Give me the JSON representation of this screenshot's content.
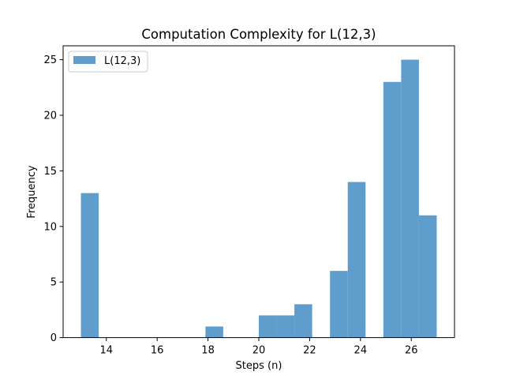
{
  "chart_data": {
    "type": "bar",
    "title": "Computation Complexity for L(12,3)",
    "xlabel": "Steps (n)",
    "ylabel": "Frequency",
    "xlim": [
      12.3,
      27.7
    ],
    "ylim": [
      0,
      26.25
    ],
    "xticks": [
      14,
      16,
      18,
      20,
      22,
      24,
      26
    ],
    "yticks": [
      0,
      5,
      10,
      15,
      20,
      25
    ],
    "grid": false,
    "legend_position": "top-left",
    "bar_color": "#5f9ecc",
    "series": [
      {
        "name": "L(12,3)",
        "bins": [
          {
            "x0": 13.0,
            "x1": 13.7,
            "value": 13
          },
          {
            "x0": 13.7,
            "x1": 14.4,
            "value": 0
          },
          {
            "x0": 14.4,
            "x1": 15.1,
            "value": 0
          },
          {
            "x0": 15.1,
            "x1": 15.8,
            "value": 0
          },
          {
            "x0": 15.8,
            "x1": 16.5,
            "value": 0
          },
          {
            "x0": 16.5,
            "x1": 17.2,
            "value": 0
          },
          {
            "x0": 17.2,
            "x1": 17.9,
            "value": 0
          },
          {
            "x0": 17.9,
            "x1": 18.6,
            "value": 1
          },
          {
            "x0": 18.6,
            "x1": 19.3,
            "value": 0
          },
          {
            "x0": 19.3,
            "x1": 20.0,
            "value": 0
          },
          {
            "x0": 20.0,
            "x1": 20.7,
            "value": 2
          },
          {
            "x0": 20.7,
            "x1": 21.4,
            "value": 2
          },
          {
            "x0": 21.4,
            "x1": 22.1,
            "value": 3
          },
          {
            "x0": 22.1,
            "x1": 22.8,
            "value": 0
          },
          {
            "x0": 22.8,
            "x1": 23.5,
            "value": 6
          },
          {
            "x0": 23.5,
            "x1": 24.2,
            "value": 14
          },
          {
            "x0": 24.2,
            "x1": 24.9,
            "value": 0
          },
          {
            "x0": 24.9,
            "x1": 25.6,
            "value": 23
          },
          {
            "x0": 25.6,
            "x1": 26.3,
            "value": 25
          },
          {
            "x0": 26.3,
            "x1": 27.0,
            "value": 11
          }
        ]
      }
    ]
  }
}
